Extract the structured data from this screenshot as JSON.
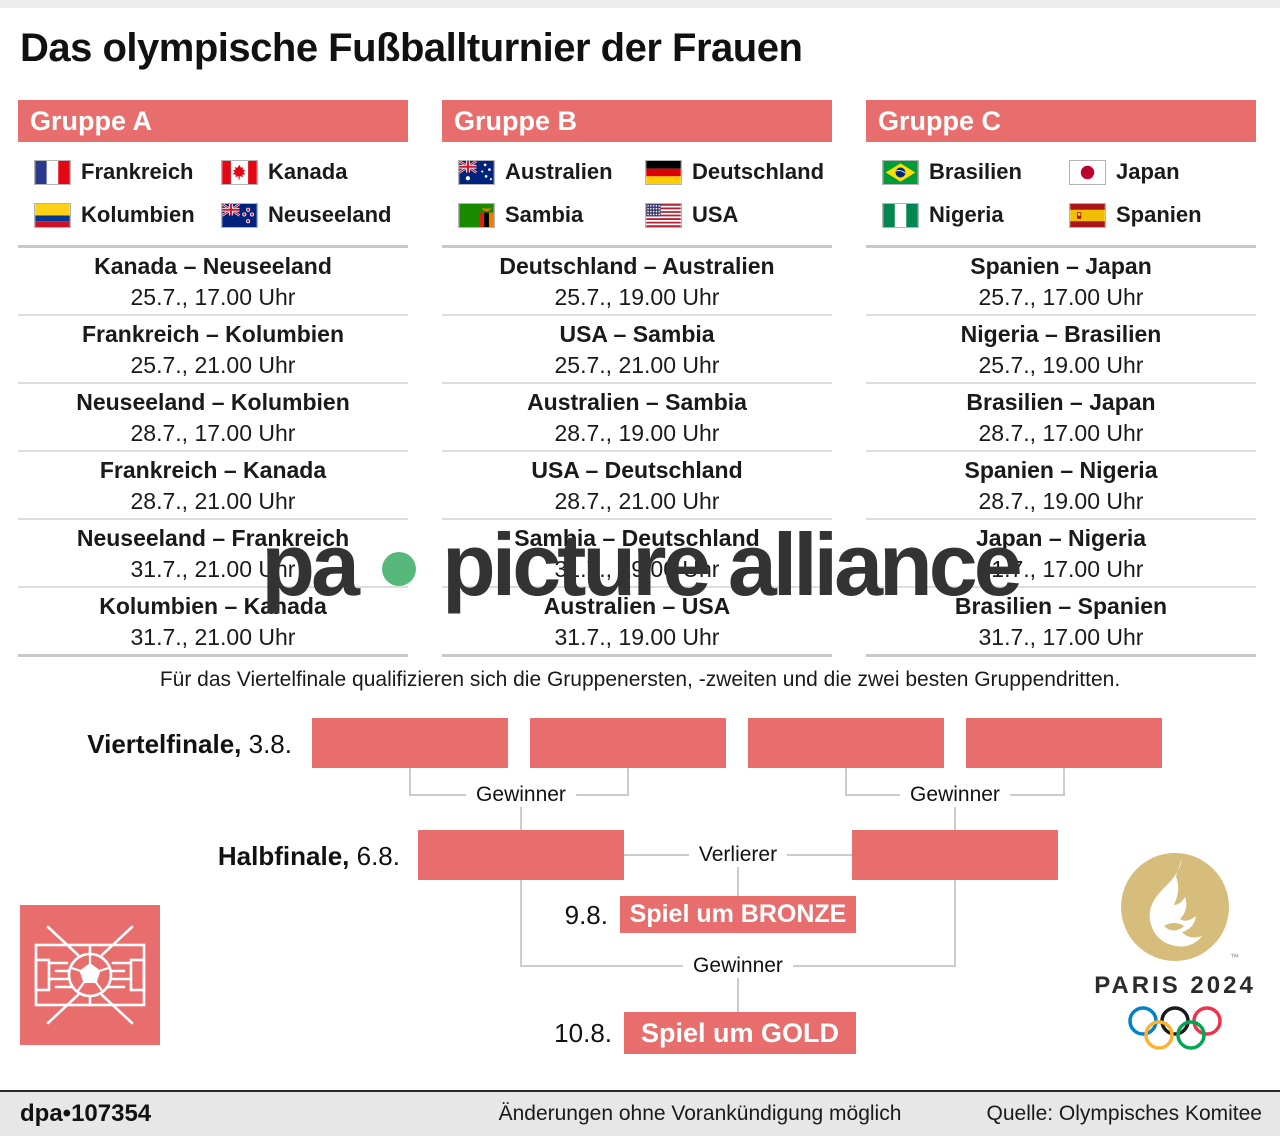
{
  "title": "Das olympische Fußballturnier der Frauen",
  "colors": {
    "accent_red": "#E86E6E",
    "watermark_green": "#57B87C",
    "logo_gold": "#D6BD7C",
    "line_gray": "#CCCCCC"
  },
  "groups": [
    {
      "name": "Gruppe A",
      "teams": [
        {
          "flag": "france",
          "name": "Frankreich"
        },
        {
          "flag": "canada",
          "name": "Kanada"
        },
        {
          "flag": "colombia",
          "name": "Kolumbien"
        },
        {
          "flag": "new-zealand",
          "name": "Neuseeland"
        }
      ],
      "matches": [
        {
          "teams": "Kanada – Neuseeland",
          "time": "25.7., 17.00 Uhr"
        },
        {
          "teams": "Frankreich – Kolumbien",
          "time": "25.7., 21.00 Uhr"
        },
        {
          "teams": "Neuseeland – Kolumbien",
          "time": "28.7., 17.00 Uhr"
        },
        {
          "teams": "Frankreich – Kanada",
          "time": "28.7., 21.00 Uhr"
        },
        {
          "teams": "Neuseeland – Frankreich",
          "time": "31.7., 21.00 Uhr"
        },
        {
          "teams": "Kolumbien – Kanada",
          "time": "31.7., 21.00 Uhr"
        }
      ]
    },
    {
      "name": "Gruppe B",
      "teams": [
        {
          "flag": "australia",
          "name": "Australien"
        },
        {
          "flag": "germany",
          "name": "Deutschland"
        },
        {
          "flag": "zambia",
          "name": "Sambia"
        },
        {
          "flag": "usa",
          "name": "USA"
        }
      ],
      "matches": [
        {
          "teams": "Deutschland – Australien",
          "time": "25.7., 19.00 Uhr"
        },
        {
          "teams": "USA – Sambia",
          "time": "25.7., 21.00 Uhr"
        },
        {
          "teams": "Australien – Sambia",
          "time": "28.7., 19.00 Uhr"
        },
        {
          "teams": "USA – Deutschland",
          "time": "28.7., 21.00 Uhr"
        },
        {
          "teams": "Sambia – Deutschland",
          "time": "31.7., 19.00 Uhr"
        },
        {
          "teams": "Australien – USA",
          "time": "31.7., 19.00 Uhr"
        }
      ]
    },
    {
      "name": "Gruppe C",
      "teams": [
        {
          "flag": "brazil",
          "name": "Brasilien"
        },
        {
          "flag": "japan",
          "name": "Japan"
        },
        {
          "flag": "nigeria",
          "name": "Nigeria"
        },
        {
          "flag": "spain",
          "name": "Spanien"
        }
      ],
      "matches": [
        {
          "teams": "Spanien – Japan",
          "time": "25.7., 17.00 Uhr"
        },
        {
          "teams": "Nigeria – Brasilien",
          "time": "25.7., 19.00 Uhr"
        },
        {
          "teams": "Brasilien – Japan",
          "time": "28.7., 17.00 Uhr"
        },
        {
          "teams": "Spanien – Nigeria",
          "time": "28.7., 19.00 Uhr"
        },
        {
          "teams": "Japan – Nigeria",
          "time": "31.7., 17.00 Uhr"
        },
        {
          "teams": "Brasilien – Spanien",
          "time": "31.7., 17.00 Uhr"
        }
      ]
    }
  ],
  "bracket": {
    "qualification_note": "Für das Viertelfinale qualifizieren sich die Gruppenersten, -zweiten und die zwei besten Gruppendritten.",
    "quarterfinal_label": "Viertelfinale,",
    "quarterfinal_date": "3.8.",
    "semifinal_label": "Halbfinale,",
    "semifinal_date": "6.8.",
    "winner_label": "Gewinner",
    "loser_label": "Verlierer",
    "bronze_date": "9.8.",
    "bronze_label": "Spiel um BRONZE",
    "gold_date": "10.8.",
    "gold_label": "Spiel um GOLD"
  },
  "watermark": {
    "part1": "pa",
    "part2": "picture alliance"
  },
  "paris_logo": {
    "wordmark": "PARIS 2024",
    "tm": "™"
  },
  "footer": {
    "id": "dpa•107354",
    "note": "Änderungen ohne Vorankündigung möglich",
    "source": "Quelle: Olympisches Komitee"
  }
}
